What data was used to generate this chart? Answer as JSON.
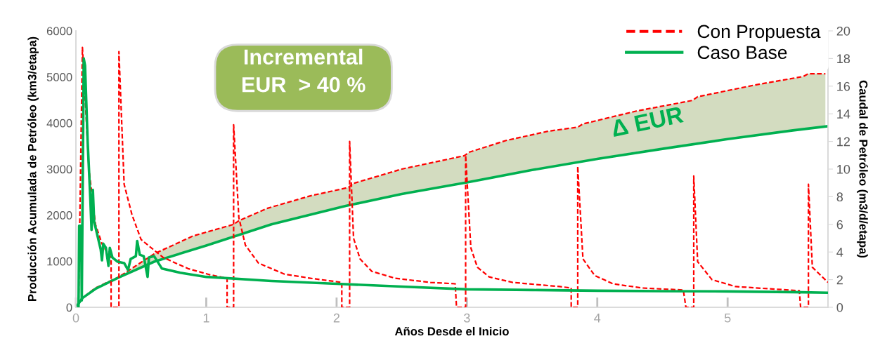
{
  "chart_data": {
    "type": "line",
    "xlabel": "Años Desde el Inicio",
    "ylabel": "Producción Acumulada de Petróleo (km3/etapa)",
    "y2label": "Caudal de Petróleo (m3/d/etapa)",
    "xlim": [
      0,
      5.77
    ],
    "xticks": [
      0,
      1,
      2,
      3,
      4,
      5
    ],
    "ylim": [
      0,
      6000
    ],
    "yticks": [
      0,
      1000,
      2000,
      3000,
      4000,
      5000,
      6000
    ],
    "y2lim": [
      0,
      20
    ],
    "y2ticks": [
      0,
      2,
      4,
      6,
      8,
      10,
      12,
      14,
      16,
      18,
      20
    ],
    "grid": false,
    "legend": "top right",
    "marker": "none",
    "annotations": [
      "Incremental",
      "EUR  > 40 %",
      "Δ EUR"
    ],
    "series": [
      {
        "name": "Con Propuesta",
        "line_style": "dashed",
        "color": "#ff0000",
        "x": [
          0,
          0.05,
          0.15,
          0.33,
          0.6,
          0.9,
          1.21,
          1.25,
          1.47,
          1.8,
          2.09,
          2.13,
          2.5,
          2.98,
          3.02,
          3.3,
          3.62,
          3.85,
          3.89,
          4.3,
          4.73,
          4.77,
          5.2,
          5.58,
          5.62,
          5.75
        ],
        "values": [
          0,
          200,
          420,
          660,
          1160,
          1550,
          1800,
          1880,
          2150,
          2420,
          2600,
          2690,
          3000,
          3290,
          3370,
          3620,
          3820,
          3910,
          3980,
          4260,
          4490,
          4570,
          4820,
          5010,
          5070,
          5070
        ],
        "lower": [
          0,
          200,
          400,
          650,
          990,
          1260,
          1550,
          1580,
          1780,
          2000,
          2200,
          2230,
          2460,
          2700,
          2720,
          2870,
          3040,
          3160,
          3180,
          3380,
          3560,
          3580,
          3730,
          3870,
          3880,
          3925
        ],
        "upper": [
          0,
          200,
          420,
          660,
          1160,
          1550,
          1800,
          1880,
          2150,
          2420,
          2600,
          2690,
          3000,
          3290,
          3370,
          3620,
          3820,
          3910,
          3980,
          4260,
          4490,
          4570,
          4820,
          5010,
          5070,
          5070
        ]
      },
      {
        "name": "Caso Base",
        "line_style": "solid",
        "color": "#00b050",
        "x": [
          0,
          0.05,
          0.15,
          0.33,
          0.6,
          1.0,
          1.5,
          2.07,
          2.5,
          3.0,
          3.5,
          4.0,
          4.5,
          5.0,
          5.5,
          5.77
        ],
        "values": [
          0,
          200,
          400,
          650,
          990,
          1340,
          1800,
          2200,
          2460,
          2710,
          2980,
          3220,
          3440,
          3650,
          3840,
          3930
        ]
      },
      {
        "axis": "y2",
        "line_style": "dashed",
        "color": "#ff0000",
        "x": [
          0.02,
          0.05,
          0.1,
          0.15,
          0.2,
          0.25,
          0.27,
          0.27,
          0.33,
          0.33,
          0.37,
          0.43,
          0.5,
          0.67,
          0.86,
          1.03,
          1.16,
          1.16,
          1.21,
          1.21,
          1.25,
          1.3,
          1.4,
          1.6,
          1.8,
          2.04,
          2.04,
          2.1,
          2.1,
          2.13,
          2.18,
          2.27,
          2.45,
          2.72,
          2.91,
          2.92,
          2.99,
          2.99,
          3.03,
          3.08,
          3.17,
          3.35,
          3.71,
          3.8,
          3.8,
          3.85,
          3.85,
          3.89,
          3.98,
          4.12,
          4.34,
          4.66,
          4.68,
          4.74,
          4.74,
          4.77,
          4.88,
          5.06,
          5.55,
          5.56,
          5.62,
          5.62,
          5.65,
          5.77
        ],
        "values": [
          0,
          18.8,
          10,
          6,
          4.6,
          3.8,
          3.6,
          0,
          0,
          18.5,
          8.9,
          6.7,
          4.9,
          3.6,
          2.8,
          2.35,
          2.1,
          0,
          0,
          13.2,
          6.5,
          4.5,
          3.2,
          2.4,
          2.1,
          1.8,
          0,
          0,
          12,
          5.0,
          3.5,
          2.6,
          2.1,
          1.8,
          1.7,
          0,
          0,
          11,
          4.3,
          2.9,
          2.2,
          1.8,
          1.5,
          1.4,
          0,
          0,
          10.2,
          3.5,
          2.3,
          1.7,
          1.4,
          1.25,
          0,
          0,
          9.5,
          3.3,
          2.0,
          1.5,
          1.2,
          0,
          0,
          8.9,
          2.9,
          1.8
        ]
      },
      {
        "axis": "y2",
        "line_style": "solid",
        "color": "#00b050",
        "x": [
          0.02,
          0.025,
          0.04,
          0.045,
          0.06,
          0.07,
          0.09,
          0.11,
          0.12,
          0.13,
          0.14,
          0.17,
          0.19,
          0.2,
          0.21,
          0.23,
          0.25,
          0.26,
          0.28,
          0.32,
          0.37,
          0.4,
          0.42,
          0.46,
          0.47,
          0.49,
          0.52,
          0.55,
          0.56,
          0.6,
          0.66,
          0.8,
          1.0,
          1.5,
          2.0,
          2.5,
          3.0,
          3.5,
          4.0,
          4.5,
          5.0,
          5.5,
          5.77
        ],
        "values": [
          0,
          5.9,
          5.9,
          0.5,
          18.0,
          17.5,
          12,
          8,
          5.6,
          8.5,
          6.2,
          5.0,
          4.2,
          3.4,
          4.6,
          4.3,
          3.0,
          4.3,
          3.6,
          3.3,
          3.2,
          2.7,
          3.5,
          3.7,
          4.8,
          3.8,
          3.7,
          2.2,
          3.6,
          3.7,
          2.8,
          2.5,
          2.2,
          1.9,
          1.7,
          1.5,
          1.3,
          1.25,
          1.2,
          1.17,
          1.15,
          1.1,
          1.05
        ]
      }
    ]
  }
}
